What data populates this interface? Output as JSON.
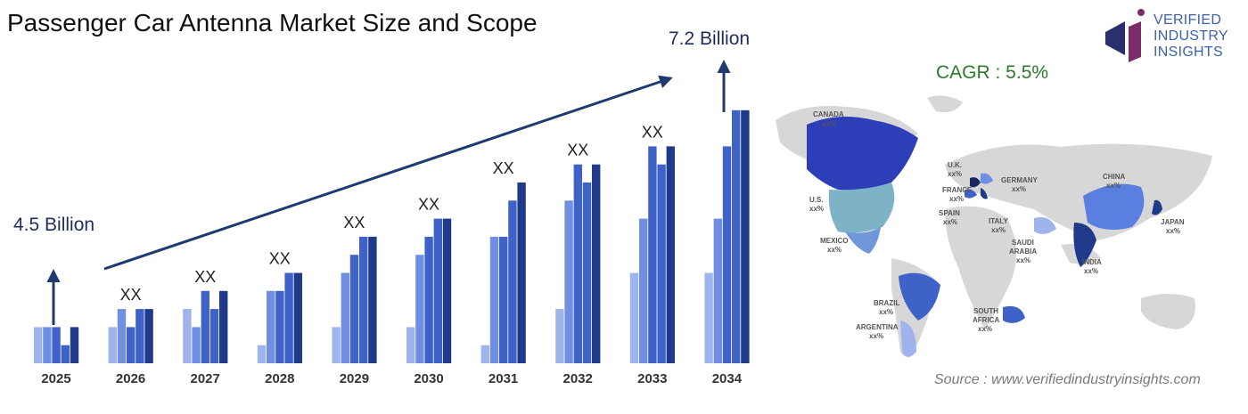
{
  "title": "Passenger Car Antenna Market Size and Scope",
  "logo": {
    "line1": "VERIFIED",
    "line2": "INDUSTRY",
    "line3": "INSIGHTS"
  },
  "cagr": "CAGR : 5.5%",
  "source": "Source : www.verifiedindustryinsights.com",
  "colors": {
    "c1": "#9fb4ec",
    "c2": "#6e8fe2",
    "c3": "#3f62c9",
    "c4": "#1f3a8a",
    "arrow": "#1f3a6e",
    "cagr": "#2b7b2b"
  },
  "chart_data": {
    "type": "bar",
    "categories": [
      "2025",
      "2026",
      "2027",
      "2028",
      "2029",
      "2030",
      "2031",
      "2032",
      "2033",
      "2034"
    ],
    "series": [
      {
        "values": [
          2,
          2,
          3,
          1,
          2,
          2,
          1,
          3,
          5,
          5
        ]
      },
      {
        "values": [
          2,
          3,
          2,
          4,
          5,
          6,
          7,
          9,
          8,
          8
        ]
      },
      {
        "values": [
          2,
          2,
          4,
          4,
          6,
          7,
          7,
          11,
          12,
          12
        ]
      },
      {
        "values": [
          1,
          3,
          3,
          5,
          7,
          8,
          9,
          10,
          11,
          14
        ]
      },
      {
        "values": [
          2,
          3,
          4,
          5,
          7,
          8,
          10,
          11,
          12,
          14
        ]
      }
    ],
    "ylim": [
      0,
      14
    ],
    "data_labels": [
      "",
      "XX",
      "XX",
      "XX",
      "XX",
      "XX",
      "XX",
      "XX",
      "XX",
      ""
    ],
    "start_label": "4.5 Billion",
    "end_label": "7.2 Billion"
  },
  "map": {
    "countries": [
      {
        "name": "CANADA",
        "value": "xx%"
      },
      {
        "name": "U.S.",
        "value": "xx%"
      },
      {
        "name": "MEXICO",
        "value": "xx%"
      },
      {
        "name": "BRAZIL",
        "value": "xx%"
      },
      {
        "name": "ARGENTINA",
        "value": "xx%"
      },
      {
        "name": "U.K.",
        "value": "xx%"
      },
      {
        "name": "FRANCE",
        "value": "xx%"
      },
      {
        "name": "SPAIN",
        "value": "xx%"
      },
      {
        "name": "GERMANY",
        "value": "xx%"
      },
      {
        "name": "ITALY",
        "value": "xx%"
      },
      {
        "name": "SAUDI",
        "value": ""
      },
      {
        "name": "ARABIA",
        "value": "xx%"
      },
      {
        "name": "SOUTH",
        "value": ""
      },
      {
        "name": "AFRICA",
        "value": "xx%"
      },
      {
        "name": "CHINA",
        "value": "xx%"
      },
      {
        "name": "INDIA",
        "value": "xx%"
      },
      {
        "name": "JAPAN",
        "value": "xx%"
      }
    ]
  }
}
